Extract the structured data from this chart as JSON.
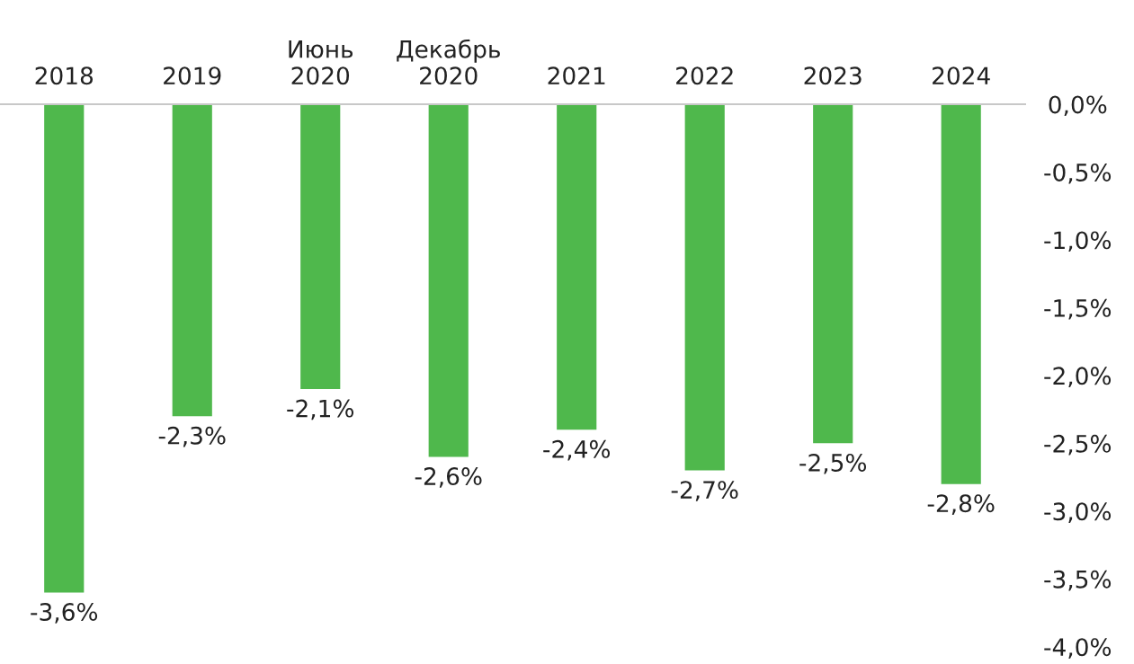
{
  "chart_data": {
    "type": "bar",
    "categories": [
      "2018",
      "2019",
      "Июнь\n2020",
      "Декабрь\n2020",
      "2021",
      "2022",
      "2023",
      "2024"
    ],
    "values": [
      -3.6,
      -2.3,
      -2.1,
      -2.6,
      -2.4,
      -2.7,
      -2.5,
      -2.8
    ],
    "value_labels": [
      "-3,6%",
      "-2,3%",
      "-2,1%",
      "-2,6%",
      "-2,4%",
      "-2,7%",
      "-2,5%",
      "-2,8%"
    ],
    "color": "#4fb84c",
    "ylim": [
      -4.0,
      0
    ],
    "yticks": [
      {
        "value": 0,
        "label": "0,0%"
      },
      {
        "value": -0.5,
        "label": "-0,5%"
      },
      {
        "value": -1.0,
        "label": "-1,0%"
      },
      {
        "value": -1.5,
        "label": "-1,5%"
      },
      {
        "value": -2.0,
        "label": "-2,0%"
      },
      {
        "value": -2.5,
        "label": "-2,5%"
      },
      {
        "value": -3.0,
        "label": "-3,0%"
      },
      {
        "value": -3.5,
        "label": "-3,5%"
      },
      {
        "value": -4.0,
        "label": "-4,0%"
      }
    ],
    "grid": false
  }
}
